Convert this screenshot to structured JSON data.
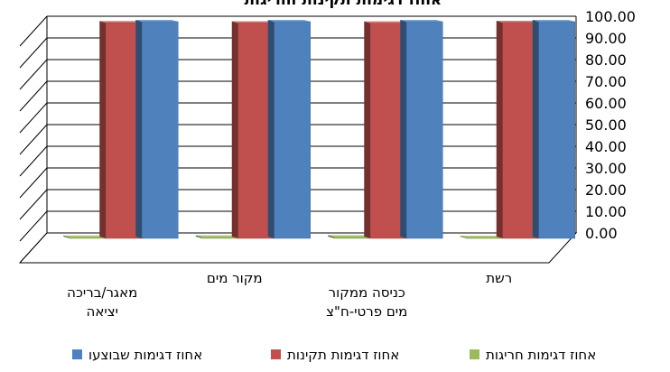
{
  "chart_data": {
    "type": "bar",
    "title": "אחוז דגימות תקינות וחריגות",
    "categories": [
      "מאגר/בריכה\nיציאה",
      "מקור מים",
      "כניסה ממקור\nמים פרטי-ח\"צ",
      "רשת"
    ],
    "series": [
      {
        "name": "אחוז דגימות  חריגות",
        "color": "#9bbb59",
        "values": [
          0.5,
          0.6,
          0.7,
          0.4
        ]
      },
      {
        "name": "אחוז דגימות תקינות",
        "color": "#c0504d",
        "values": [
          99.5,
          99.4,
          99.3,
          99.6
        ]
      },
      {
        "name": "אחוז דגימות  שבוצעו",
        "color": "#4f81bd",
        "values": [
          100,
          100,
          100,
          100
        ]
      }
    ],
    "ylim": [
      0,
      100
    ],
    "yticks": [
      "0.00",
      "10.00",
      "20.00",
      "30.00",
      "40.00",
      "50.00",
      "60.00",
      "70.00",
      "80.00",
      "90.00",
      "100.00"
    ],
    "grid": true,
    "legend_position": "bottom",
    "yaxis_side": "right"
  }
}
